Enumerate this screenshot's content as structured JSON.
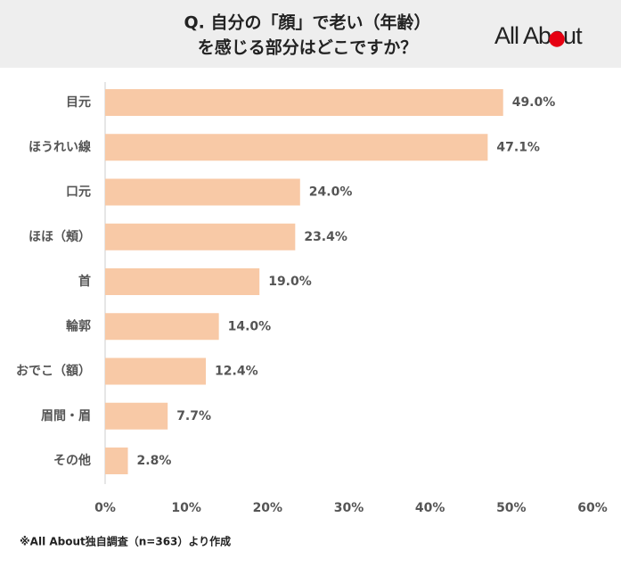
{
  "chart_data": {
    "type": "bar",
    "orientation": "horizontal",
    "title": [
      "Q. 自分の「顔」で老い（年齢）",
      "を感じる部分はどこですか？"
    ],
    "logo": "All About",
    "note": "※All About独自調査（n=363）より作成",
    "categories": [
      "目元",
      "ほうれい線",
      "口元",
      "ほほ（頬）",
      "首",
      "輪郭",
      "おでこ（額）",
      "眉間・眉",
      "その他"
    ],
    "values": [
      49.0,
      47.1,
      24.0,
      23.4,
      19.0,
      14.0,
      12.4,
      7.7,
      2.8
    ],
    "value_labels": [
      "49.0%",
      "47.1%",
      "24.0%",
      "23.4%",
      "19.0%",
      "14.0%",
      "12.4%",
      "7.7%",
      "2.8%"
    ],
    "color": "#f8c9a6",
    "logo_color": "#e60012",
    "xlim": [
      0,
      60
    ],
    "xticks": [
      {
        "value": 0,
        "label": "0%"
      },
      {
        "value": 10,
        "label": "10%"
      },
      {
        "value": 20,
        "label": "20%"
      },
      {
        "value": 30,
        "label": "30%"
      },
      {
        "value": 40,
        "label": "40%"
      },
      {
        "value": 50,
        "label": "50%"
      },
      {
        "value": 60,
        "label": "60%"
      }
    ],
    "grid": false
  }
}
